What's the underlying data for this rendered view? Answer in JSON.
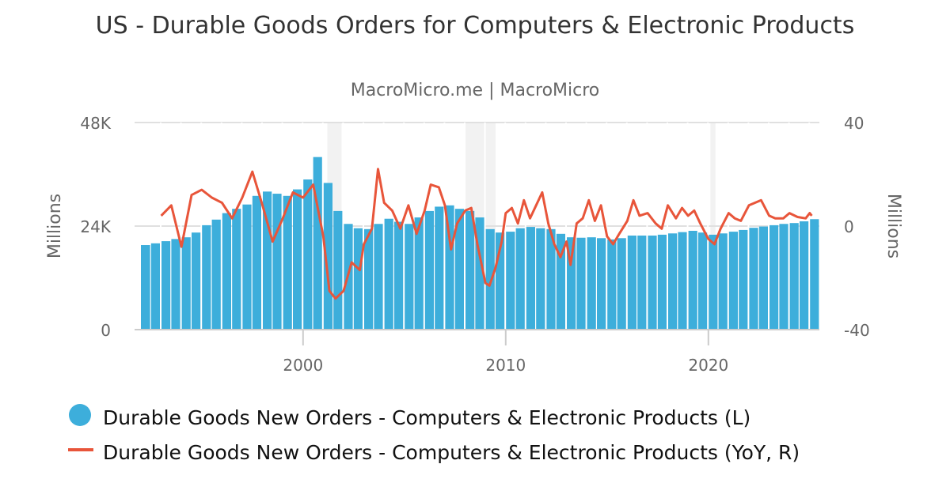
{
  "chart_data": {
    "type": "bar+line",
    "title": "US - Durable Goods Orders for Computers & Electronic Products",
    "subtitle": "MacroMicro.me | MacroMicro",
    "left_axis": {
      "label": "Millions",
      "ticks": [
        "0",
        "24K",
        "48K"
      ],
      "range": [
        0,
        48
      ]
    },
    "right_axis": {
      "label": "Millions",
      "ticks": [
        "-40",
        "0",
        "40"
      ],
      "range": [
        -40,
        40
      ]
    },
    "x_axis": {
      "ticks": [
        "2000",
        "2010",
        "2020"
      ],
      "tick_values": [
        2000,
        2010,
        2020
      ],
      "range": [
        1991.2,
        2025.6
      ]
    },
    "recessions": [
      [
        2001.2,
        2001.9
      ],
      [
        2007.95,
        2009.5
      ],
      [
        2020.1,
        2020.35
      ]
    ],
    "series": [
      {
        "name": "Durable Goods New Orders - Computers & Electronic Products (L)",
        "type": "bar",
        "color": "#3daedb",
        "unit": "thousand millions",
        "x": [
          1992,
          1992.5,
          1993,
          1993.5,
          1994,
          1994.5,
          1995,
          1995.5,
          1996,
          1996.5,
          1997,
          1997.5,
          1998,
          1998.5,
          1999,
          1999.5,
          2000,
          2000.5,
          2001,
          2001.5,
          2002,
          2002.5,
          2003,
          2003.5,
          2004,
          2004.5,
          2005,
          2005.5,
          2006,
          2006.5,
          2007,
          2007.5,
          2008,
          2008.5,
          2009,
          2009.5,
          2010,
          2010.5,
          2011,
          2011.5,
          2012,
          2012.5,
          2013,
          2013.5,
          2014,
          2014.5,
          2015,
          2015.5,
          2016,
          2016.5,
          2017,
          2017.5,
          2018,
          2018.5,
          2019,
          2019.5,
          2020,
          2020.5,
          2021,
          2021.5,
          2022,
          2022.5,
          2023,
          2023.5,
          2024,
          2024.5,
          2025
        ],
        "values": [
          19.6,
          20,
          20.5,
          21,
          21.4,
          22.5,
          24.2,
          25.5,
          27,
          28,
          29,
          31,
          32,
          31.5,
          31,
          32.5,
          34.8,
          40,
          34,
          27.5,
          24.5,
          23.5,
          23.3,
          24.5,
          25.7,
          25,
          24.5,
          26,
          27.5,
          28.5,
          28.8,
          28,
          27.5,
          26,
          23.3,
          22.5,
          22.7,
          23.5,
          23.8,
          23.5,
          23.3,
          22.2,
          21.4,
          21.3,
          21.4,
          21.2,
          20.9,
          21.2,
          21.8,
          21.8,
          21.8,
          22,
          22.3,
          22.6,
          22.9,
          22.5,
          22,
          22.3,
          22.7,
          23.1,
          23.6,
          23.9,
          24.2,
          24.5,
          24.7,
          25.1,
          25.6
        ]
      },
      {
        "name": "Durable Goods New Orders - Computers & Electronic Products (YoY, R)",
        "type": "line",
        "color": "#e8553a",
        "unit": "%",
        "x": [
          1993.0,
          1993.5,
          1994.0,
          1994.5,
          1995.0,
          1995.5,
          1996.0,
          1996.5,
          1997.0,
          1997.5,
          1998.0,
          1998.5,
          1999.0,
          1999.5,
          2000.0,
          2000.5,
          2001.0,
          2001.3,
          2001.6,
          2002.0,
          2002.4,
          2002.8,
          2003.0,
          2003.4,
          2003.7,
          2004.0,
          2004.4,
          2004.8,
          2005.2,
          2005.6,
          2006.0,
          2006.3,
          2006.7,
          2007.0,
          2007.3,
          2007.6,
          2008.0,
          2008.3,
          2008.6,
          2009.0,
          2009.2,
          2009.5,
          2009.8,
          2010.0,
          2010.3,
          2010.6,
          2010.9,
          2011.2,
          2011.5,
          2011.8,
          2012.1,
          2012.4,
          2012.7,
          2013.0,
          2013.2,
          2013.5,
          2013.8,
          2014.1,
          2014.4,
          2014.7,
          2015.0,
          2015.3,
          2015.6,
          2016.0,
          2016.3,
          2016.6,
          2017.0,
          2017.4,
          2017.7,
          2018.0,
          2018.4,
          2018.7,
          2019.0,
          2019.3,
          2019.6,
          2020.0,
          2020.3,
          2020.6,
          2021.0,
          2021.3,
          2021.6,
          2022.0,
          2022.3,
          2022.6,
          2023.0,
          2023.3,
          2023.7,
          2024.0,
          2024.4,
          2024.8,
          2025.0,
          2025.1
        ],
        "values": [
          4,
          8,
          -8,
          12,
          14,
          11,
          9,
          3,
          11,
          21,
          8,
          -6,
          3,
          13,
          11,
          16,
          -4,
          -25,
          -28,
          -25,
          -14,
          -17,
          -7,
          -1,
          22,
          9,
          6,
          -1,
          8,
          -3,
          6,
          16,
          15,
          8,
          -9,
          1,
          6,
          7,
          -7,
          -22,
          -23,
          -16,
          -6,
          5,
          7,
          1,
          10,
          3,
          8,
          13,
          1,
          -7,
          -12,
          -6,
          -15,
          1,
          3,
          10,
          2,
          8,
          -4,
          -7,
          -3,
          2,
          10,
          4,
          5,
          1,
          -1,
          8,
          3,
          7,
          4,
          6,
          1,
          -5,
          -7,
          -1,
          5,
          3,
          2,
          8,
          9,
          10,
          4,
          3,
          3,
          5,
          3.5,
          3,
          5,
          4
        ]
      }
    ],
    "legend_placement": "bottom-left"
  }
}
